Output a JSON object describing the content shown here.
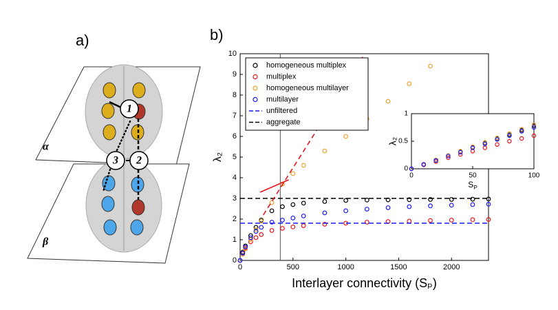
{
  "diagram": {
    "panel_label": "a)",
    "nodes": [
      {
        "label": "1"
      },
      {
        "label": "3"
      },
      {
        "label": "2"
      }
    ],
    "layers": [
      {
        "label": "α"
      },
      {
        "label": "β"
      }
    ]
  },
  "chart_data": [
    {
      "type": "scatter",
      "panel_label": "b)",
      "xlabel": "Interlayer connectivity (Sₚ)",
      "ylabel": "λ₂",
      "xlim": [
        0,
        2350
      ],
      "ylim": [
        0,
        10
      ],
      "xticks": [
        0,
        500,
        1000,
        1500,
        2000
      ],
      "yticks": [
        0,
        1,
        2,
        3,
        4,
        5,
        6,
        7,
        8,
        9,
        10
      ],
      "legend": "upper left",
      "x": [
        0,
        25,
        50,
        100,
        150,
        200,
        300,
        400,
        500,
        600,
        800,
        1000,
        1200,
        1400,
        1600,
        1800,
        2000,
        2200,
        2350
      ],
      "series": [
        {
          "name": "homogeneous multiplex",
          "color": "#000000",
          "values": [
            0,
            0.4,
            0.7,
            1.2,
            1.6,
            1.95,
            2.4,
            2.6,
            2.7,
            2.77,
            2.85,
            2.9,
            2.92,
            2.93,
            2.94,
            2.95,
            2.95,
            2.96,
            2.97
          ]
        },
        {
          "name": "multiplex",
          "color": "#e8141a",
          "values": [
            0,
            0.35,
            0.6,
            0.9,
            1.1,
            1.25,
            1.45,
            1.55,
            1.62,
            1.68,
            1.75,
            1.8,
            1.85,
            1.88,
            1.9,
            1.93,
            1.95,
            1.97,
            1.98
          ]
        },
        {
          "name": "homogeneous multilayer",
          "color": "#f0a030",
          "values": [
            0,
            0.3,
            0.55,
            1.0,
            1.5,
            1.9,
            2.8,
            3.7,
            4.2,
            4.6,
            5.3,
            6.0,
            6.85,
            7.7,
            8.55,
            9.4,
            null,
            null,
            null
          ]
        },
        {
          "name": "multilayer",
          "color": "#1a1aff",
          "values": [
            0,
            0.35,
            0.65,
            1.1,
            1.4,
            1.6,
            1.85,
            1.95,
            2.05,
            2.15,
            2.3,
            2.4,
            2.48,
            2.55,
            2.6,
            2.64,
            2.67,
            2.7,
            2.72
          ]
        },
        {
          "name": "unfiltered",
          "color": "#1a1aff",
          "dash": true,
          "value": 1.8
        },
        {
          "name": "aggregate",
          "color": "#000000",
          "dash": true,
          "value": 3.0
        }
      ],
      "reference_lines": [
        {
          "color": "#e8141a",
          "dash": true,
          "x": [
            220,
            1180
          ],
          "y": [
            2.2,
            10
          ]
        },
        {
          "color": "#e8141a",
          "dash": false,
          "x": [
            190,
            460
          ],
          "y": [
            3.3,
            3.9
          ]
        }
      ],
      "vline": 380
    },
    {
      "type": "scatter",
      "xlabel": "S",
      "xlabel_sub": "P",
      "ylabel": "λ₂",
      "xlim": [
        0,
        100
      ],
      "ylim": [
        0,
        1
      ],
      "xticks": [
        0,
        50,
        100
      ],
      "yticks": [
        0,
        0.5,
        1
      ],
      "x": [
        0,
        10,
        20,
        30,
        40,
        50,
        60,
        70,
        80,
        90,
        100
      ],
      "series": [
        {
          "name": "homogeneous multiplex",
          "color": "#000000",
          "values": [
            0,
            0.08,
            0.16,
            0.24,
            0.31,
            0.39,
            0.47,
            0.55,
            0.62,
            0.7,
            0.78
          ]
        },
        {
          "name": "multiplex",
          "color": "#e8141a",
          "values": [
            0,
            0.07,
            0.13,
            0.2,
            0.26,
            0.32,
            0.38,
            0.44,
            0.5,
            0.55,
            0.6
          ]
        },
        {
          "name": "homogeneous multilayer",
          "color": "#f0a030",
          "values": [
            0,
            0.08,
            0.16,
            0.24,
            0.32,
            0.4,
            0.48,
            0.56,
            0.64,
            0.72,
            0.8
          ]
        },
        {
          "name": "multilayer",
          "color": "#1a1aff",
          "values": [
            0,
            0.08,
            0.15,
            0.23,
            0.3,
            0.38,
            0.45,
            0.53,
            0.6,
            0.68,
            0.75
          ]
        }
      ]
    }
  ]
}
